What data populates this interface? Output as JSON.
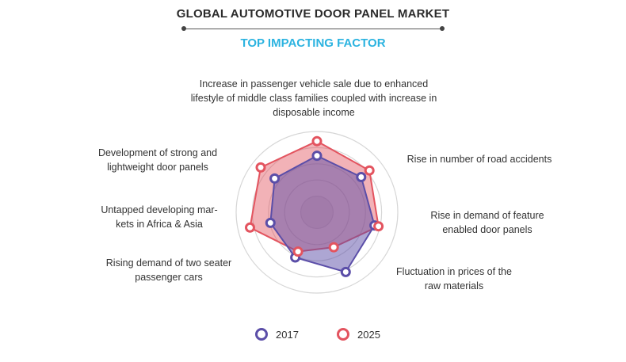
{
  "header": {
    "title": "GLOBAL AUTOMOTIVE DOOR PANEL MARKET",
    "subtitle": "TOP IMPACTING FACTOR"
  },
  "chart_data": {
    "type": "radar",
    "rmax": 10,
    "rings": [
      2,
      4,
      6,
      8,
      10
    ],
    "axes": [
      "Increase in passenger vehicle sale due to enhanced lifestyle of middle class families coupled with increase in disposable income",
      "Rise in number of road accidents",
      "Rise in demand of feature enabled door panels",
      "Fluctuation in prices of the raw materials",
      "Rising demand of two seater passenger cars",
      "Untapped developing markets in Africa & Asia",
      "Development of strong and lightweight door panels"
    ],
    "axis_label_lines": [
      [
        "Increase in passenger vehicle sale due to enhanced",
        "lifestyle of middle class families coupled with increase in",
        "disposable income"
      ],
      [
        "Rise in number of road accidents"
      ],
      [
        "Rise in demand of feature",
        "enabled door panels"
      ],
      [
        "Fluctuation in prices of the",
        "raw materials"
      ],
      [
        "Rising demand of two seater",
        "passenger cars"
      ],
      [
        "Untapped developing mar-",
        "kets in Africa & Asia"
      ],
      [
        "Development of strong and",
        "lightweight door panels"
      ]
    ],
    "series": [
      {
        "name": "2017",
        "color": "#5b4ea8",
        "values": [
          7.0,
          7.0,
          7.3,
          8.2,
          6.2,
          5.9,
          6.7
        ]
      },
      {
        "name": "2025",
        "color": "#e3545f",
        "values": [
          8.8,
          8.3,
          7.8,
          4.8,
          5.4,
          8.5,
          8.9
        ]
      }
    ]
  }
}
